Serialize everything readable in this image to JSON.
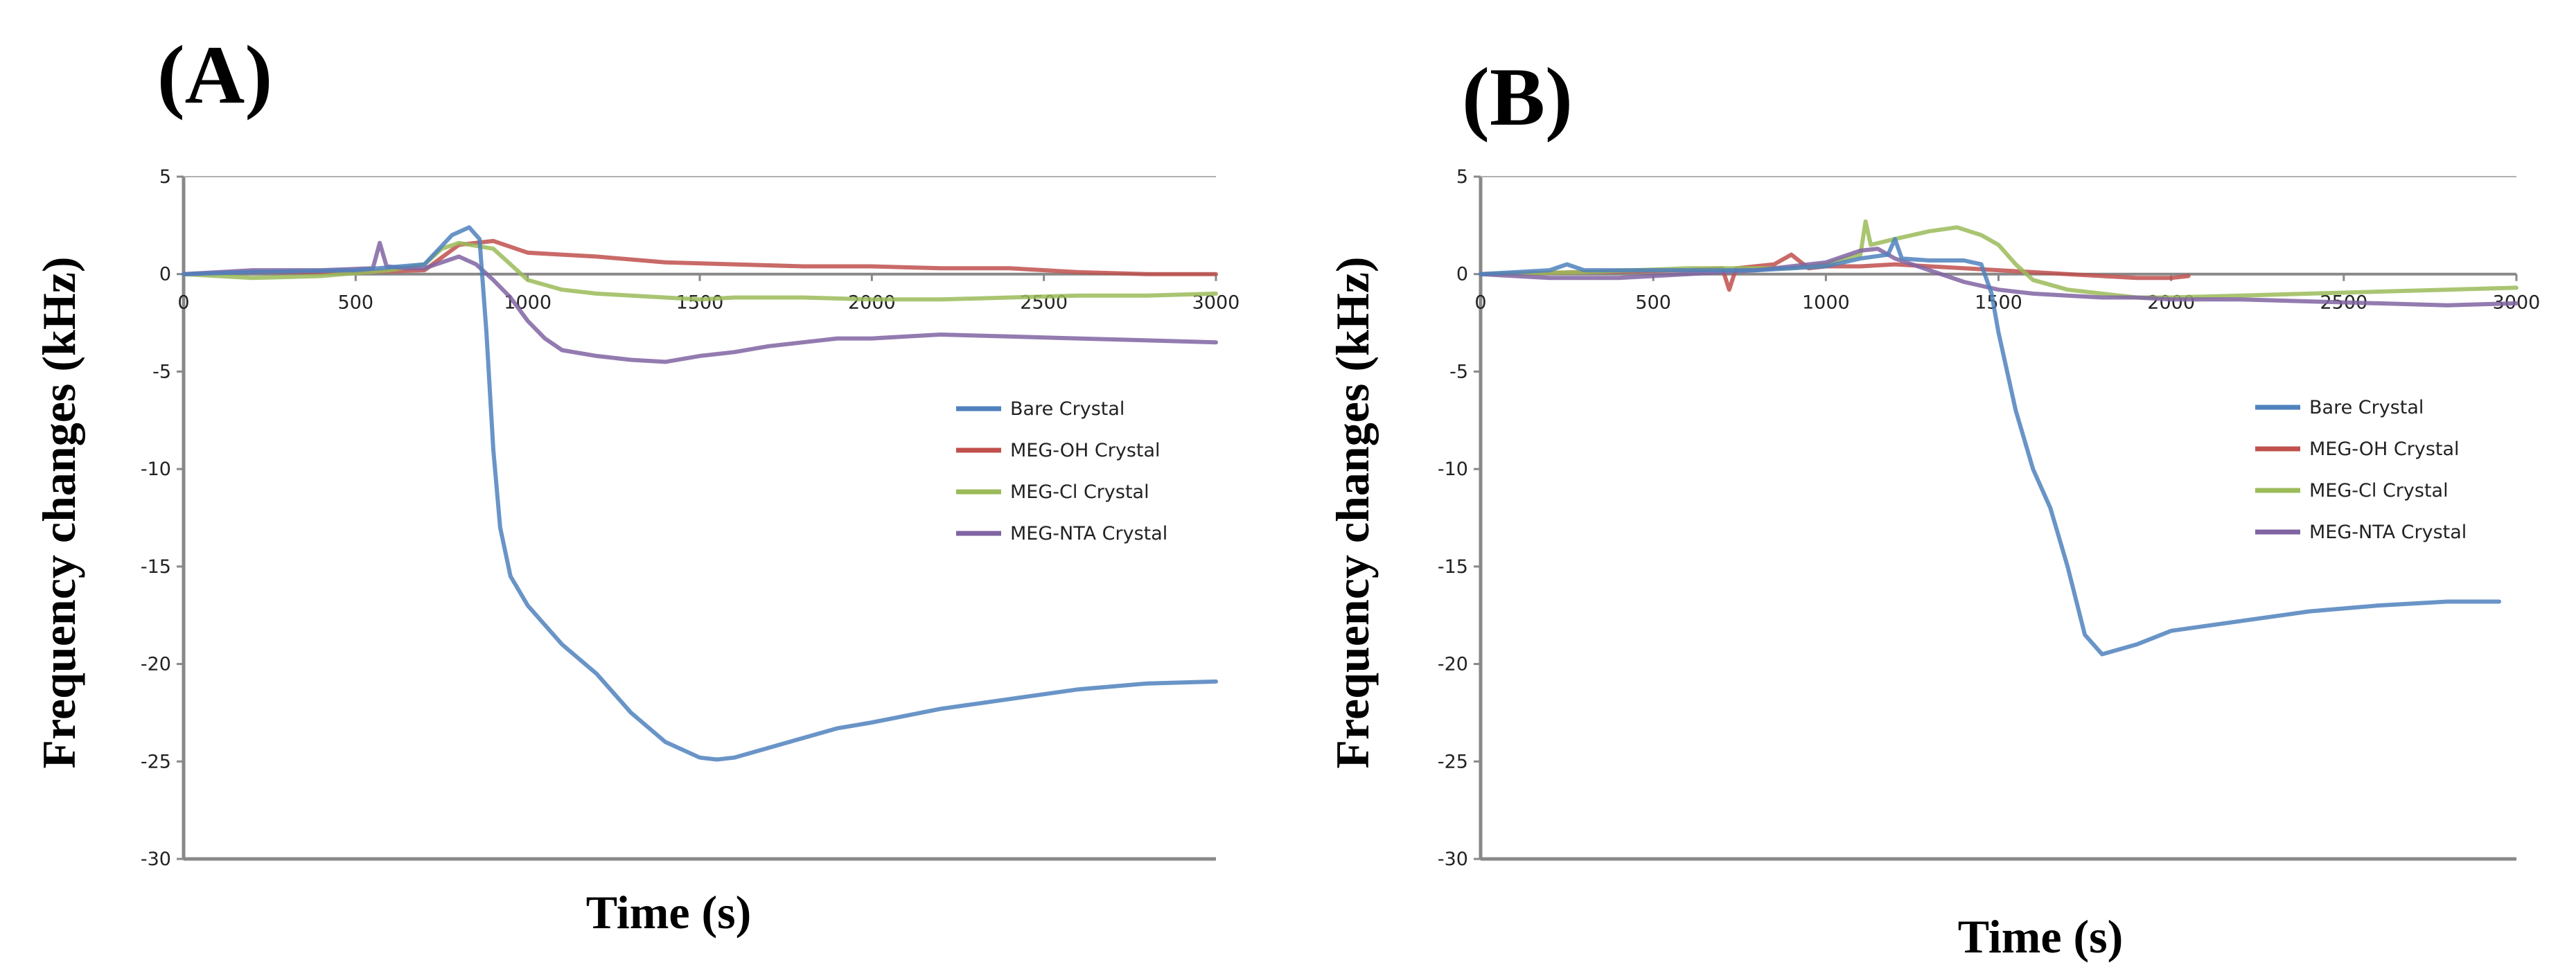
{
  "chart_data": [
    {
      "panel_label": "(A)",
      "type": "line",
      "xlabel": "Time (s)",
      "ylabel": "Frequency changes  (kHz)",
      "xlim": [
        0,
        3000
      ],
      "ylim": [
        -30,
        5
      ],
      "xticks": [
        0,
        500,
        1000,
        1500,
        2000,
        2500,
        3000
      ],
      "yticks": [
        5,
        0,
        -5,
        -10,
        -15,
        -20,
        -25,
        -30
      ],
      "legend": "right",
      "series": [
        {
          "name": "Bare Crystal",
          "color": "#4f81bd",
          "x": [
            0,
            200,
            500,
            700,
            780,
            830,
            860,
            880,
            900,
            920,
            950,
            1000,
            1050,
            1100,
            1200,
            1300,
            1400,
            1500,
            1550,
            1600,
            1700,
            1800,
            1900,
            2000,
            2200,
            2400,
            2600,
            2800,
            3000
          ],
          "y": [
            0,
            0.1,
            0.2,
            0.5,
            2.0,
            2.4,
            1.8,
            -3,
            -9,
            -13,
            -15.5,
            -17,
            -18,
            -19,
            -20.5,
            -22.5,
            -24,
            -24.8,
            -24.9,
            -24.8,
            -24.3,
            -23.8,
            -23.3,
            -23.0,
            -22.3,
            -21.8,
            -21.3,
            -21.0,
            -20.9
          ]
        },
        {
          "name": "MEG-OH Crystal",
          "color": "#c0504d",
          "x": [
            0,
            200,
            500,
            700,
            800,
            900,
            950,
            1000,
            1100,
            1200,
            1400,
            1600,
            1800,
            2000,
            2200,
            2400,
            2600,
            2800,
            3000
          ],
          "y": [
            0,
            0.1,
            0.1,
            0.2,
            1.5,
            1.7,
            1.4,
            1.1,
            1.0,
            0.9,
            0.6,
            0.5,
            0.4,
            0.4,
            0.3,
            0.3,
            0.1,
            0.0,
            0.0
          ]
        },
        {
          "name": "MEG-Cl Crystal",
          "color": "#9bbb59",
          "x": [
            0,
            200,
            400,
            600,
            700,
            750,
            800,
            900,
            950,
            1000,
            1100,
            1200,
            1300,
            1400,
            1500,
            1600,
            1800,
            2000,
            2200,
            2400,
            2600,
            2800,
            3000
          ],
          "y": [
            0,
            -0.2,
            -0.1,
            0.2,
            0.5,
            1.3,
            1.6,
            1.3,
            0.5,
            -0.3,
            -0.8,
            -1.0,
            -1.1,
            -1.2,
            -1.3,
            -1.2,
            -1.2,
            -1.3,
            -1.3,
            -1.2,
            -1.1,
            -1.1,
            -1.0
          ]
        },
        {
          "name": "MEG-NTA Crystal",
          "color": "#8064a2",
          "x": [
            0,
            200,
            400,
            550,
            570,
            590,
            650,
            700,
            800,
            850,
            900,
            950,
            1000,
            1050,
            1100,
            1200,
            1300,
            1400,
            1500,
            1600,
            1700,
            1800,
            1900,
            2000,
            2100,
            2200,
            2400,
            2600,
            2800,
            3000
          ],
          "y": [
            0,
            0.2,
            0.2,
            0.3,
            1.6,
            0.4,
            0.3,
            0.3,
            0.9,
            0.5,
            -0.3,
            -1.2,
            -2.4,
            -3.3,
            -3.9,
            -4.2,
            -4.4,
            -4.5,
            -4.2,
            -4.0,
            -3.7,
            -3.5,
            -3.3,
            -3.3,
            -3.2,
            -3.1,
            -3.2,
            -3.3,
            -3.4,
            -3.5
          ]
        }
      ]
    },
    {
      "panel_label": "(B)",
      "type": "line",
      "xlabel": "Time (s)",
      "ylabel": "Frequency changes  (kHz)",
      "xlim": [
        0,
        3000
      ],
      "ylim": [
        -30,
        5
      ],
      "xticks": [
        0,
        500,
        1000,
        1500,
        2000,
        2500,
        3000
      ],
      "yticks": [
        5,
        0,
        -5,
        -10,
        -15,
        -20,
        -25,
        -30
      ],
      "legend": "right",
      "series": [
        {
          "name": "Bare Crystal",
          "color": "#4f81bd",
          "x": [
            0,
            200,
            250,
            300,
            600,
            800,
            1000,
            1100,
            1180,
            1200,
            1220,
            1300,
            1400,
            1450,
            1480,
            1500,
            1550,
            1600,
            1650,
            1700,
            1750,
            1800,
            1900,
            2000,
            2200,
            2400,
            2600,
            2800,
            2950
          ],
          "y": [
            0,
            0.2,
            0.5,
            0.2,
            0.2,
            0.2,
            0.4,
            0.8,
            1.0,
            1.8,
            0.8,
            0.7,
            0.7,
            0.5,
            -1,
            -3,
            -7,
            -10,
            -12,
            -15,
            -18.5,
            -19.5,
            -19.0,
            -18.3,
            -17.8,
            -17.3,
            -17.0,
            -16.8,
            -16.8
          ]
        },
        {
          "name": "MEG-OH Crystal",
          "color": "#c0504d",
          "x": [
            0,
            300,
            600,
            700,
            720,
            740,
            850,
            900,
            950,
            1000,
            1100,
            1200,
            1300,
            1400,
            1500,
            1600,
            1700,
            1800,
            1900,
            2000,
            2050
          ],
          "y": [
            0,
            0.1,
            0.2,
            0.3,
            -0.8,
            0.3,
            0.5,
            1.0,
            0.3,
            0.4,
            0.4,
            0.5,
            0.4,
            0.3,
            0.2,
            0.1,
            0.0,
            -0.1,
            -0.2,
            -0.2,
            -0.1
          ]
        },
        {
          "name": "MEG-Cl Crystal",
          "color": "#9bbb59",
          "x": [
            0,
            300,
            600,
            900,
            1000,
            1100,
            1115,
            1130,
            1200,
            1300,
            1380,
            1450,
            1500,
            1550,
            1600,
            1700,
            1800,
            1900,
            2000,
            2200,
            2400,
            2600,
            2800,
            3000
          ],
          "y": [
            0,
            0.1,
            0.3,
            0.3,
            0.5,
            1.0,
            2.7,
            1.5,
            1.8,
            2.2,
            2.4,
            2.0,
            1.5,
            0.5,
            -0.3,
            -0.8,
            -1.0,
            -1.2,
            -1.2,
            -1.1,
            -1.0,
            -0.9,
            -0.8,
            -0.7
          ]
        },
        {
          "name": "MEG-NTA Crystal",
          "color": "#8064a2",
          "x": [
            0,
            200,
            400,
            600,
            800,
            1000,
            1100,
            1150,
            1200,
            1300,
            1400,
            1500,
            1600,
            1700,
            1800,
            1900,
            2000,
            2200,
            2400,
            2600,
            2800,
            3000
          ],
          "y": [
            0,
            -0.2,
            -0.2,
            0.0,
            0.2,
            0.6,
            1.2,
            1.3,
            0.8,
            0.2,
            -0.4,
            -0.8,
            -1.0,
            -1.1,
            -1.2,
            -1.2,
            -1.3,
            -1.3,
            -1.4,
            -1.5,
            -1.6,
            -1.5
          ]
        }
      ]
    }
  ]
}
